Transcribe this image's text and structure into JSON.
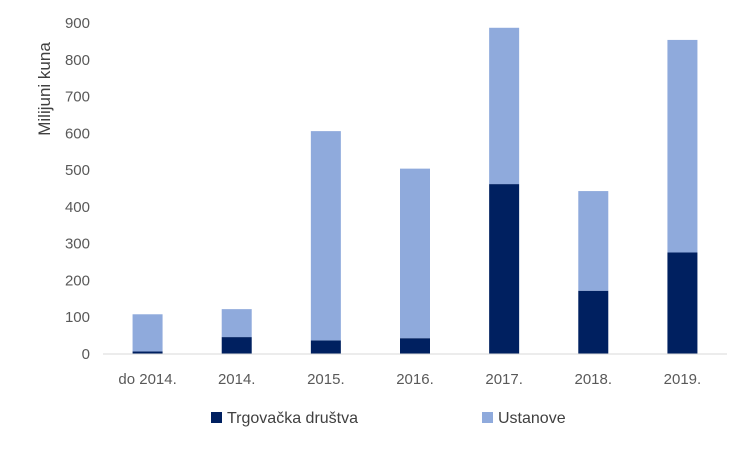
{
  "chart_data": {
    "type": "bar",
    "stacked": true,
    "title": "",
    "xlabel": "",
    "ylabel": "Milijuni kuna",
    "ylim": [
      0,
      900
    ],
    "yticks": [
      0,
      100,
      200,
      300,
      400,
      500,
      600,
      700,
      800,
      900
    ],
    "grid": false,
    "legend_position": "bottom",
    "categories": [
      "do 2014.",
      "2014.",
      "2015.",
      "2016.",
      "2017.",
      "2018.",
      "2019."
    ],
    "series": [
      {
        "name": "Trgovačka društva",
        "color": "#002060",
        "values": [
          7,
          46,
          37,
          43,
          462,
          172,
          276
        ]
      },
      {
        "name": "Ustanove",
        "color": "#8faadc",
        "values": [
          101,
          76,
          569,
          461,
          425,
          271,
          578
        ]
      }
    ]
  }
}
